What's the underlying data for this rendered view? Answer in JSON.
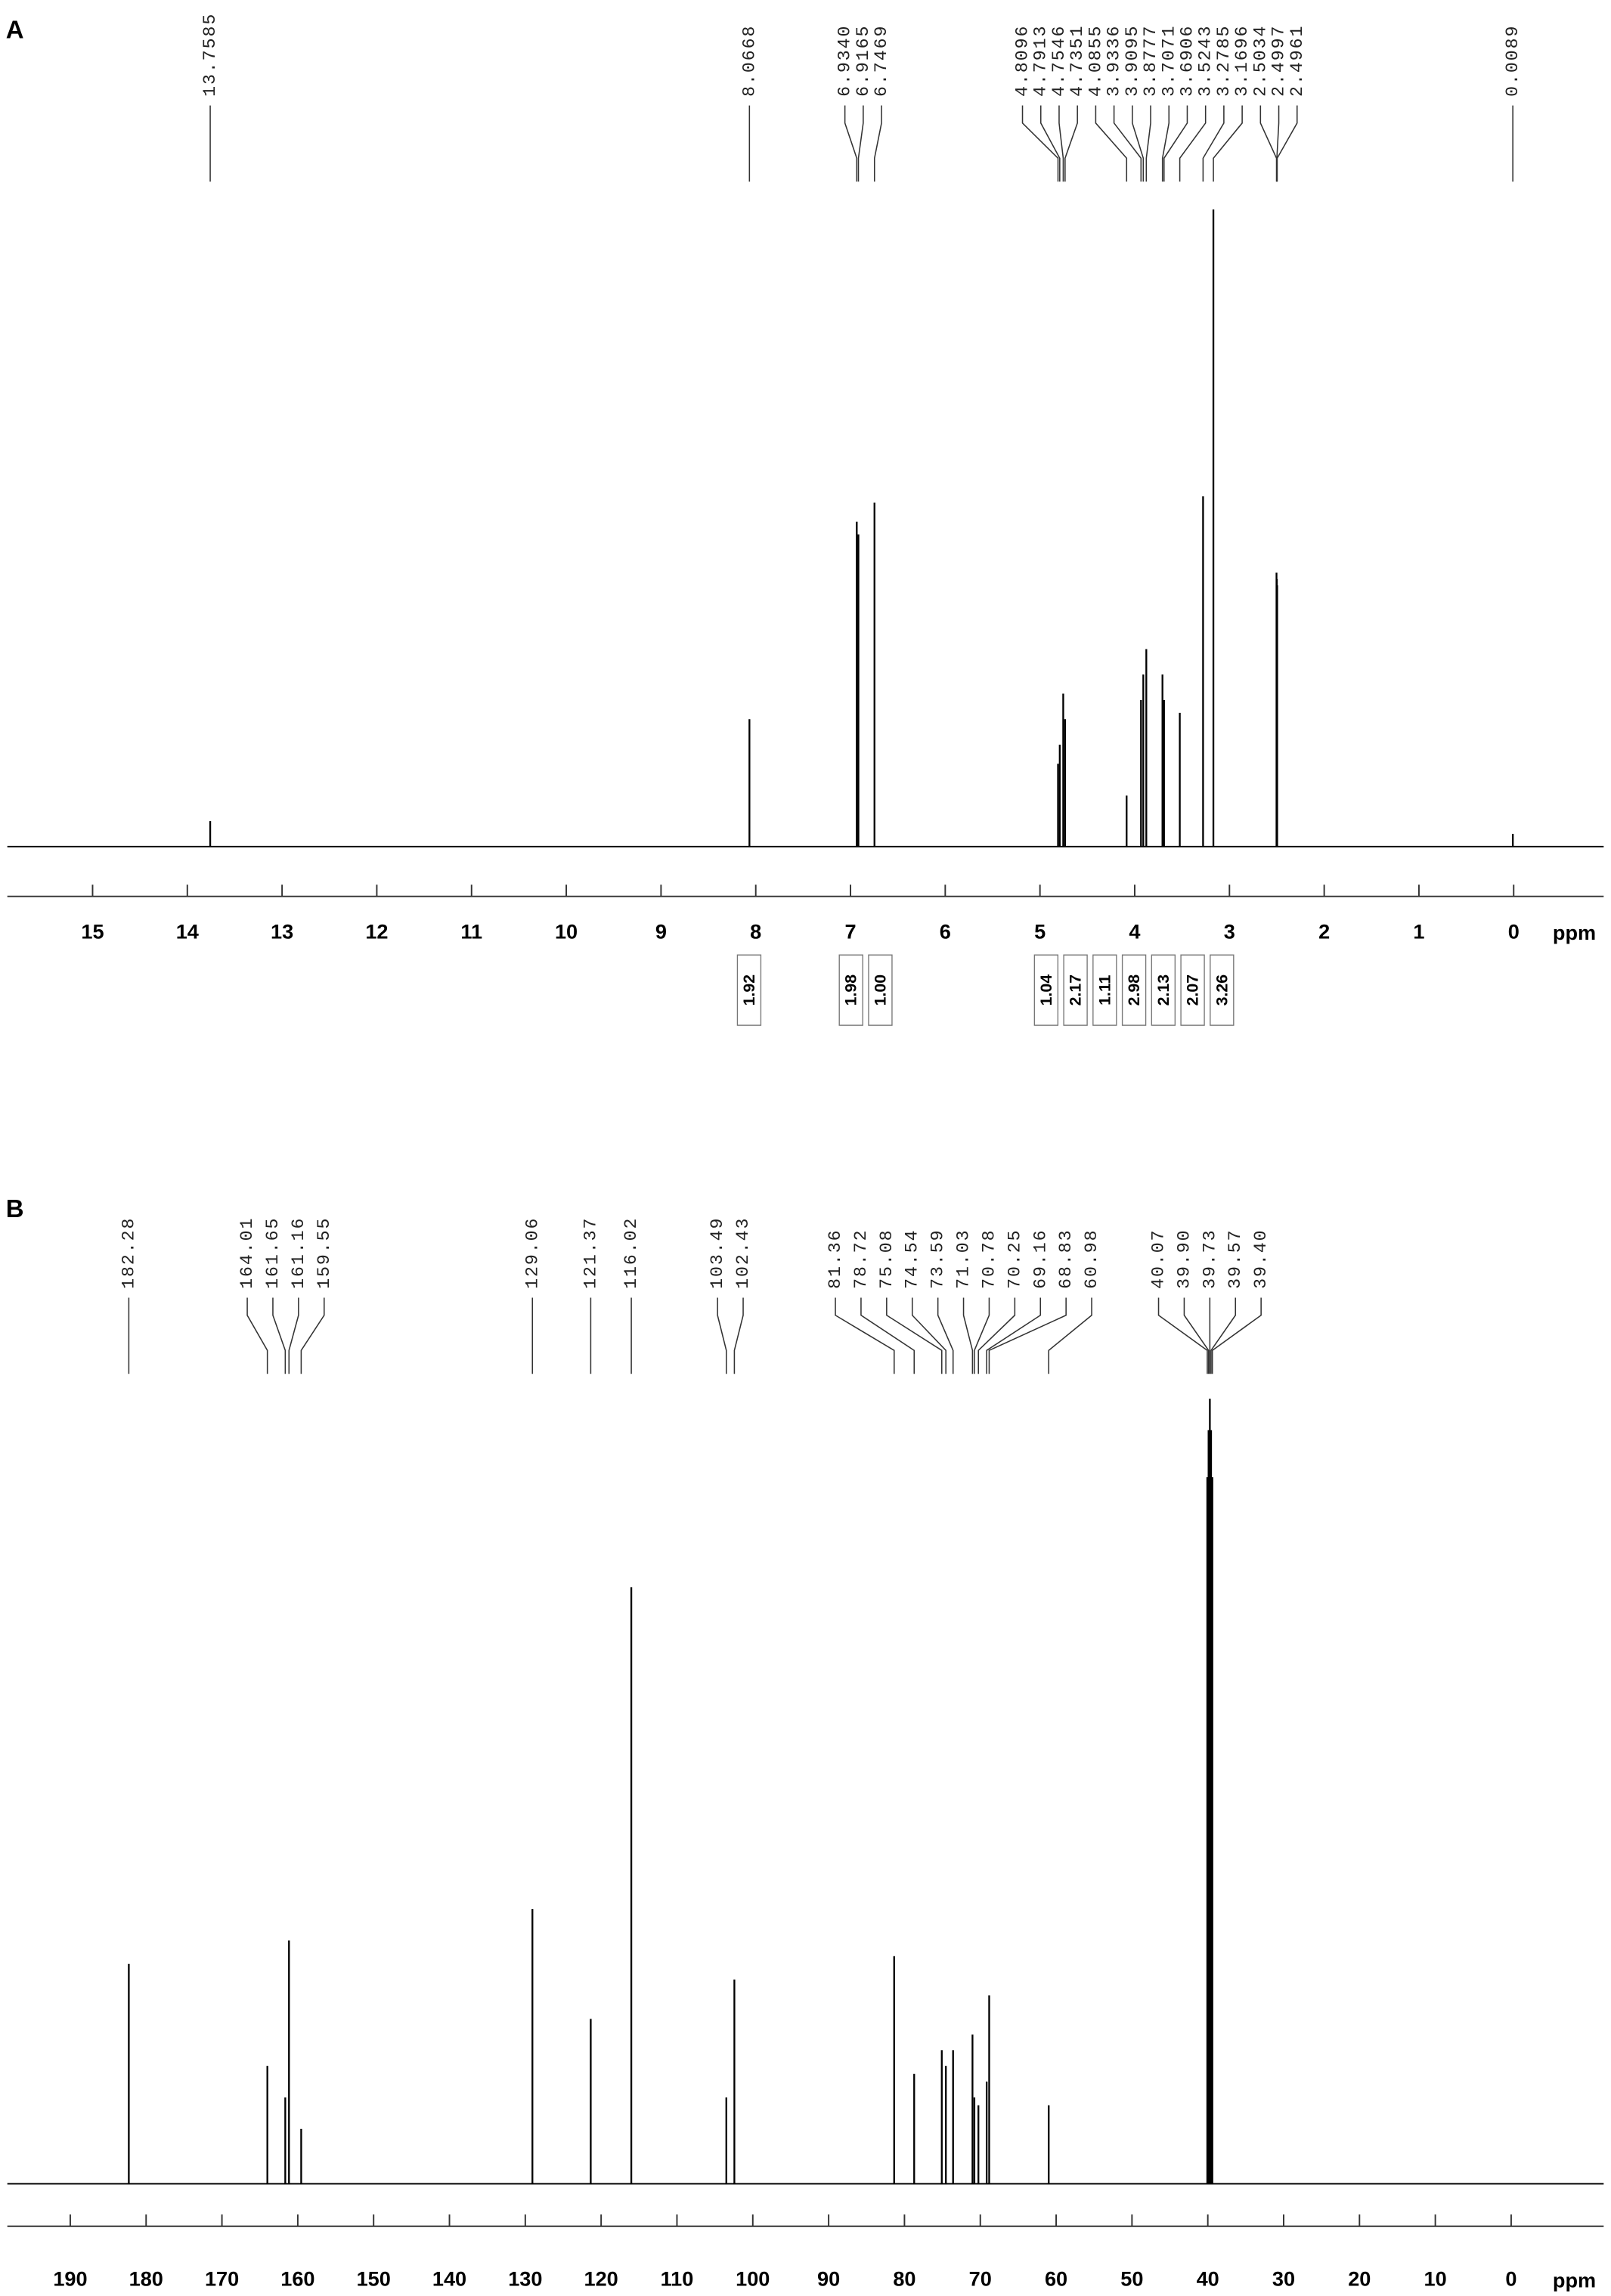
{
  "chart_data": [
    {
      "type": "nmr",
      "panel_label": "A",
      "xlabel": "ppm",
      "color": "#000000",
      "xlim": [
        15.9,
        -0.95
      ],
      "xticks": [
        15,
        14,
        13,
        12,
        11,
        10,
        9,
        8,
        7,
        6,
        5,
        4,
        3,
        2,
        1,
        0
      ],
      "peaks": [
        13.7585,
        8.0668,
        {
          "value": 6.934,
          "label": "6.9340"
        },
        6.9165,
        6.7469,
        4.8096,
        4.7913,
        4.7546,
        4.7351,
        4.0855,
        3.9336,
        3.9095,
        3.8777,
        3.7071,
        3.6906,
        3.5243,
        3.2785,
        3.1696,
        2.5034,
        2.4997,
        2.4961,
        0.0089
      ],
      "heights": [
        4,
        20,
        51,
        49,
        54,
        13,
        16,
        24,
        20,
        8,
        23,
        27,
        31,
        27,
        23,
        21,
        55,
        100,
        43,
        42,
        41,
        2
      ],
      "integral_x": [
        8.07,
        6.93,
        6.75,
        4.81,
        4.75,
        4.09,
        3.9,
        3.7,
        3.52,
        3.28
      ],
      "integrals": [
        1.92,
        1.98,
        {
          "value": 1,
          "label": "1.00"
        },
        1.04,
        2.17,
        1.11,
        2.98,
        2.13,
        2.07,
        3.26
      ]
    },
    {
      "type": "nmr",
      "panel_label": "B",
      "xlabel": "ppm",
      "color": "#000000",
      "xlim": [
        198.3,
        -12.2
      ],
      "xticks": [
        190,
        180,
        170,
        160,
        150,
        140,
        130,
        120,
        110,
        100,
        90,
        80,
        70,
        60,
        50,
        40,
        30,
        20,
        10,
        0
      ],
      "peaks": [
        182.28,
        164.01,
        161.65,
        161.16,
        159.55,
        129.06,
        121.37,
        116.02,
        103.49,
        102.43,
        81.36,
        78.72,
        75.08,
        74.54,
        73.59,
        71.03,
        70.78,
        70.25,
        69.16,
        68.83,
        60.98,
        40.07,
        {
          "value": 39.9,
          "label": "39.90"
        },
        39.73,
        39.57,
        {
          "value": 39.4,
          "label": "39.40"
        }
      ],
      "heights": [
        28,
        15,
        11,
        31,
        7,
        35,
        21,
        76,
        11,
        26,
        29,
        14,
        17,
        15,
        17,
        19,
        11,
        10,
        13,
        24,
        10,
        90,
        96,
        100,
        96,
        90
      ]
    }
  ]
}
